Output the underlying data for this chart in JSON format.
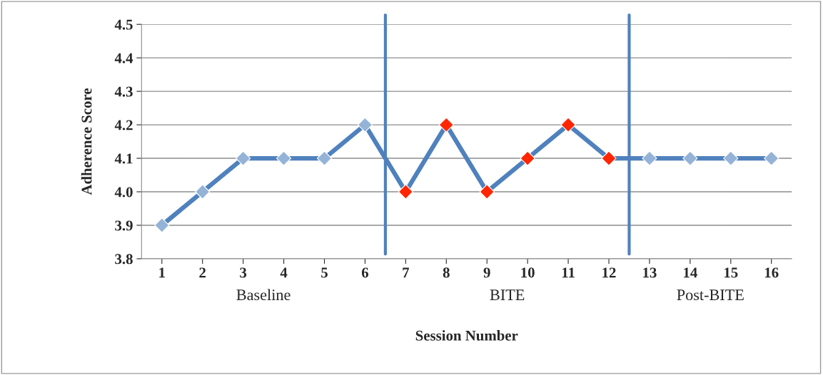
{
  "chart_data": {
    "type": "line",
    "xlabel": "Session Number",
    "ylabel": "Adherence Score",
    "x": [
      1,
      2,
      3,
      4,
      5,
      6,
      7,
      8,
      9,
      10,
      11,
      12,
      13,
      14,
      15,
      16
    ],
    "series": [
      {
        "color": "#4f81bd",
        "colors": [
          "#95b3d7",
          "#95b3d7",
          "#95b3d7",
          "#95b3d7",
          "#95b3d7",
          "#95b3d7",
          "#ff2600",
          "#ff2600",
          "#ff2600",
          "#ff2600",
          "#ff2600",
          "#ff2600",
          "#95b3d7",
          "#95b3d7",
          "#95b3d7",
          "#95b3d7"
        ],
        "values": [
          3.9,
          4.0,
          4.1,
          4.1,
          4.1,
          4.2,
          4.0,
          4.2,
          4.0,
          4.1,
          4.2,
          4.1,
          4.1,
          4.1,
          4.1,
          4.1
        ]
      }
    ],
    "xlim": [
      0.5,
      16.5
    ],
    "xticks": [
      1,
      2,
      3,
      4,
      5,
      6,
      7,
      8,
      9,
      10,
      11,
      12,
      13,
      14,
      15,
      16
    ],
    "ylim": [
      3.8,
      4.5
    ],
    "yticks": [
      {
        "value": 3.8,
        "label": "3.8"
      },
      {
        "value": 3.9,
        "label": "3.9"
      },
      {
        "value": 4.0,
        "label": "4.0"
      },
      {
        "value": 4.1,
        "label": "4.1"
      },
      {
        "value": 4.2,
        "label": "4.2"
      },
      {
        "value": 4.3,
        "label": "4.3"
      },
      {
        "value": 4.4,
        "label": "4.4"
      },
      {
        "value": 4.5,
        "label": "4.5"
      }
    ],
    "grid": "y",
    "marker": "diamond",
    "line_style": "solid",
    "legend": false,
    "ref_lines": [
      {
        "axis": "x",
        "value": 6.5,
        "color": "#4f81bd"
      },
      {
        "axis": "x",
        "value": 12.5,
        "color": "#4f81bd"
      }
    ],
    "annotations": [
      "Baseline",
      "BITE",
      "Post-BITE"
    ]
  }
}
